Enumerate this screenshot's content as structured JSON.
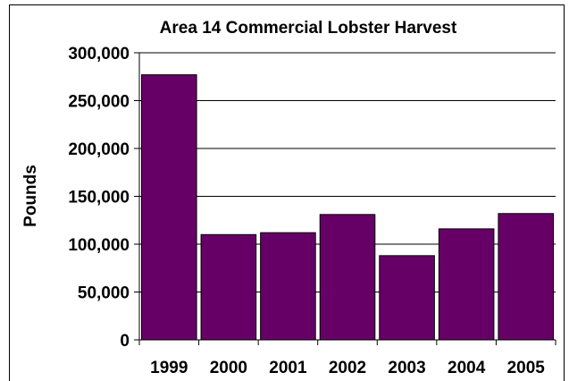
{
  "chart_data": {
    "type": "bar",
    "title": "Area 14 Commercial Lobster Harvest",
    "xlabel": "",
    "ylabel": "Pounds",
    "categories": [
      "1999",
      "2000",
      "2001",
      "2002",
      "2003",
      "2004",
      "2005"
    ],
    "values": [
      277000,
      110000,
      112000,
      131000,
      88000,
      116000,
      132000
    ],
    "ylim": [
      0,
      300000
    ],
    "yticks": [
      0,
      50000,
      100000,
      150000,
      200000,
      250000,
      300000
    ],
    "ytick_labels": [
      "0",
      "50,000",
      "100,000",
      "150,000",
      "200,000",
      "250,000",
      "300,000"
    ],
    "grid": true,
    "legend": "none",
    "colors": {
      "bar": "#660066",
      "grid": "#000000"
    }
  }
}
